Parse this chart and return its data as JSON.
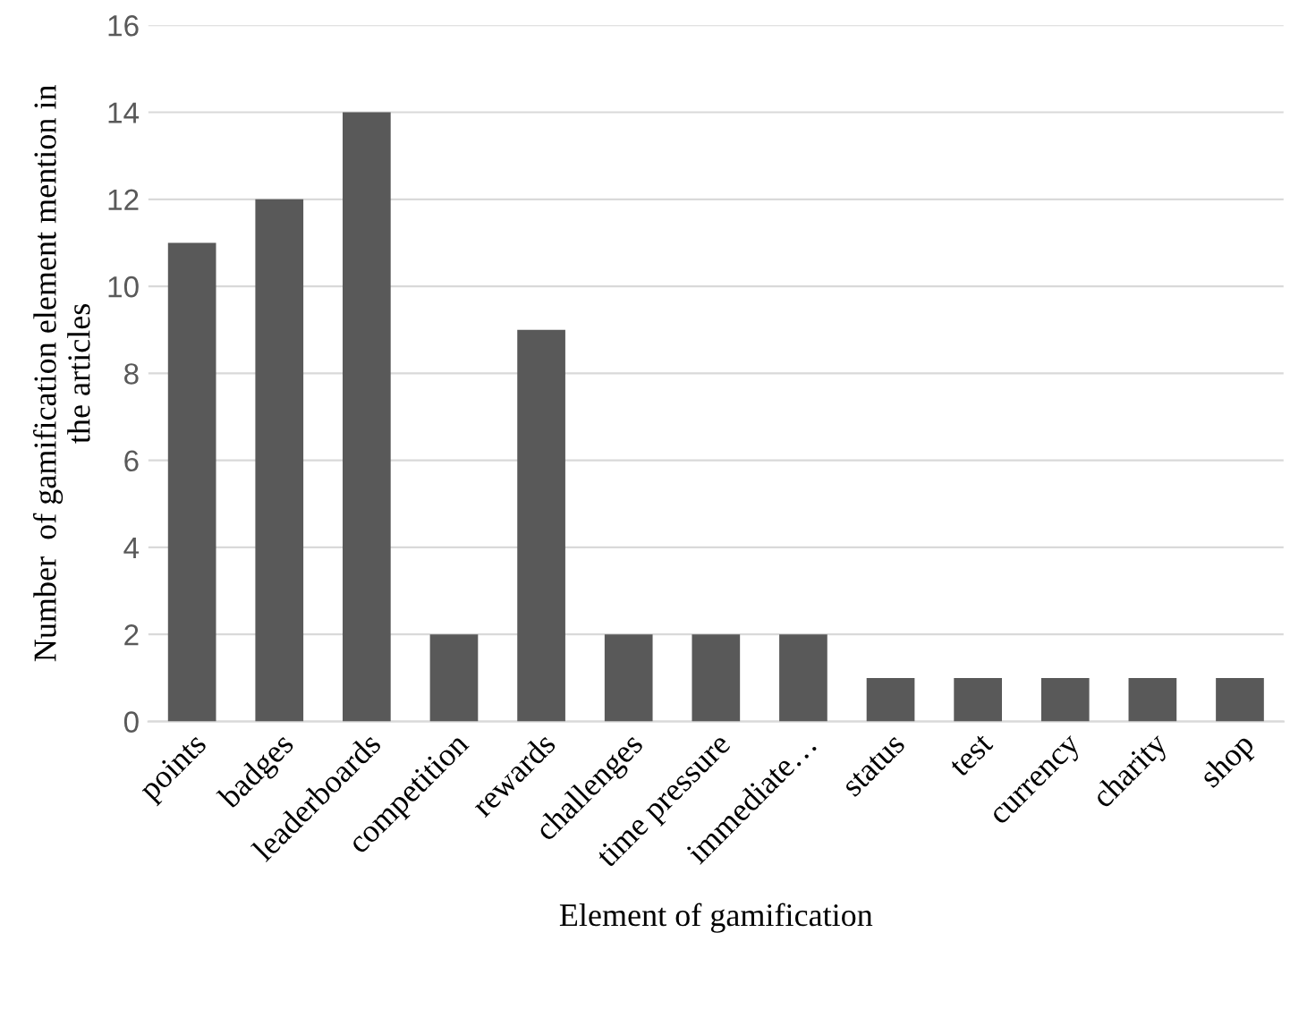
{
  "chart_data": {
    "type": "bar",
    "xlabel": "Element of gamification",
    "ylabel": "Number  of gamification element mention in\nthe articles",
    "categories": [
      "points",
      "badges",
      "leaderboards",
      "competition",
      "rewards",
      "challenges",
      "time pressure",
      "immediate…",
      "status",
      "test",
      "currency",
      "charity",
      "shop"
    ],
    "values": [
      11,
      12,
      14,
      2,
      9,
      2,
      2,
      2,
      1,
      1,
      1,
      1,
      1
    ],
    "color": "#595959",
    "ylim": [
      0,
      16
    ],
    "yticks": [
      0,
      2,
      4,
      6,
      8,
      10,
      12,
      14,
      16
    ],
    "grid": "y"
  }
}
